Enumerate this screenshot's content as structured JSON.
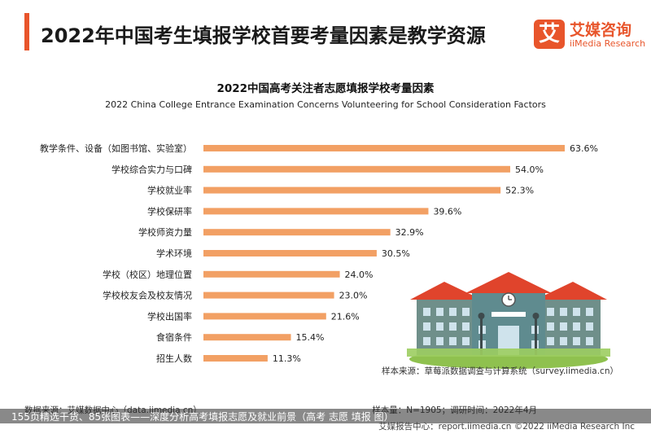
{
  "header": {
    "title": "2022年中国考生填报学校首要考量因素是教学资源",
    "accent_color": "#e8552b"
  },
  "logo": {
    "mark": "艾",
    "name_cn": "艾媒咨询",
    "name_en": "iiMedia Research"
  },
  "chart_data": {
    "type": "bar",
    "orientation": "horizontal",
    "title": "2022中国高考关注者志愿填报学校考量因素",
    "subtitle": "2022 China College Entrance Examination Concerns Volunteering for School Consideration Factors",
    "categories": [
      "教学条件、设备（如图书馆、实验室）",
      "学校综合实力与口碑",
      "学校就业率",
      "学校保研率",
      "学校师资力量",
      "学术环境",
      "学校（校区）地理位置",
      "学校校友会及校友情况",
      "学校出国率",
      "食宿条件",
      "招生人数"
    ],
    "values": [
      63.6,
      54.0,
      52.3,
      39.6,
      32.9,
      30.5,
      24.0,
      23.0,
      21.6,
      15.4,
      11.3
    ],
    "value_labels": [
      "63.6%",
      "54.0%",
      "52.3%",
      "39.6%",
      "32.9%",
      "30.5%",
      "24.0%",
      "23.0%",
      "21.6%",
      "15.4%",
      "11.3%"
    ],
    "unit": "%",
    "bar_color": "#f2a064",
    "grid": false,
    "legend": "none"
  },
  "footer": {
    "sample_source": "样本来源：草莓派数据调查与计算系统（survey.iimedia.cn）",
    "sample_size": "样本量：N=1905；调研时间：2022年4月",
    "data_source": "数据来源：艾媒数据中心（data.iimedia.cn）",
    "report_center": "艾媒报告中心：report.iimedia.cn  ©2022  iiMedia Research  Inc"
  },
  "caption": {
    "text": "155页精选干货、85张图表——深度分析高考填报志愿及就业前景（高考 志愿 填报 图）"
  }
}
